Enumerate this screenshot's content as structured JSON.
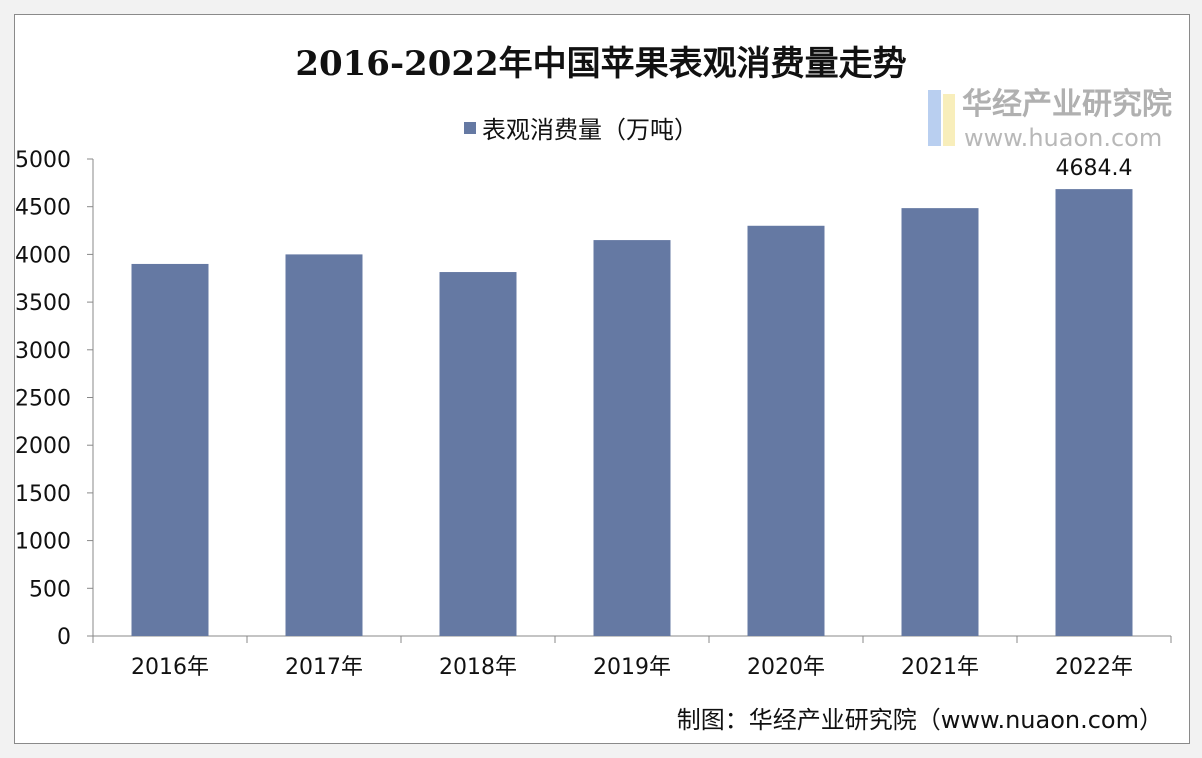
{
  "chart_data": {
    "type": "bar",
    "title": "2016-2022年中国苹果表观消费量走势",
    "categories": [
      "2016年",
      "2017年",
      "2018年",
      "2019年",
      "2020年",
      "2021年",
      "2022年"
    ],
    "series": [
      {
        "name": "表观消费量（万吨）",
        "values": [
          3900,
          4000,
          3815,
          4150,
          4300,
          4485,
          4684.4
        ],
        "color": "#6579a3"
      }
    ],
    "data_labels": [
      {
        "index": 6,
        "text": "4684.4"
      }
    ],
    "yticks": [
      "0",
      "500",
      "1000",
      "1500",
      "2000",
      "2500",
      "3000",
      "3500",
      "4000",
      "4500",
      "5000"
    ],
    "ylim": [
      0,
      5000
    ],
    "xlabel": "",
    "ylabel": "",
    "grid": false,
    "legend": "top-center",
    "source": "制图：华经产业研究院（www.nuaon.com）"
  },
  "watermark": {
    "line1": "华经产业研究院",
    "line2": "www.huaon.com"
  }
}
